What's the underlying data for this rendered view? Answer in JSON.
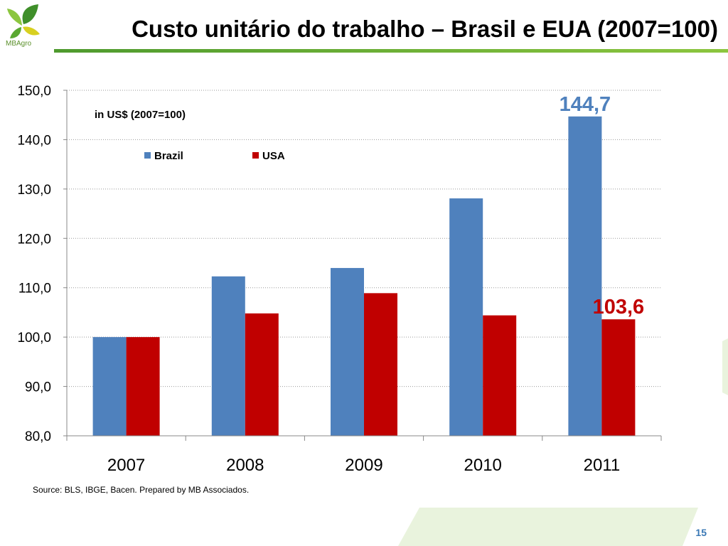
{
  "header": {
    "title": "Custo unitário do trabalho – Brasil e EUA (2007=100)",
    "logo_text": "MBAgro"
  },
  "chart_data": {
    "type": "bar",
    "subtitle": "in US$ (2007=100)",
    "categories": [
      "2007",
      "2008",
      "2009",
      "2010",
      "2011"
    ],
    "series": [
      {
        "name": "Brazil",
        "color": "#4f81bd",
        "values": [
          100.0,
          112.3,
          114.0,
          128.1,
          144.7
        ]
      },
      {
        "name": "USA",
        "color": "#c00000",
        "values": [
          100.0,
          104.8,
          108.9,
          104.4,
          103.6
        ]
      }
    ],
    "ylim": [
      80,
      150
    ],
    "yticks": [
      "80,0",
      "90,0",
      "100,0",
      "110,0",
      "120,0",
      "130,0",
      "140,0",
      "150,0"
    ],
    "ytick_values": [
      80,
      90,
      100,
      110,
      120,
      130,
      140,
      150
    ],
    "grid": true,
    "legend_position": "top-left",
    "annotations": [
      {
        "text": "144,7",
        "series": 0,
        "category": 4,
        "color": "#4f81bd"
      },
      {
        "text": "103,6",
        "series": 1,
        "category": 4,
        "color": "#c00000"
      }
    ]
  },
  "footer": {
    "source": "Source: BLS, IBGE, Bacen. Prepared by MB Associados.",
    "page_number": "15"
  }
}
